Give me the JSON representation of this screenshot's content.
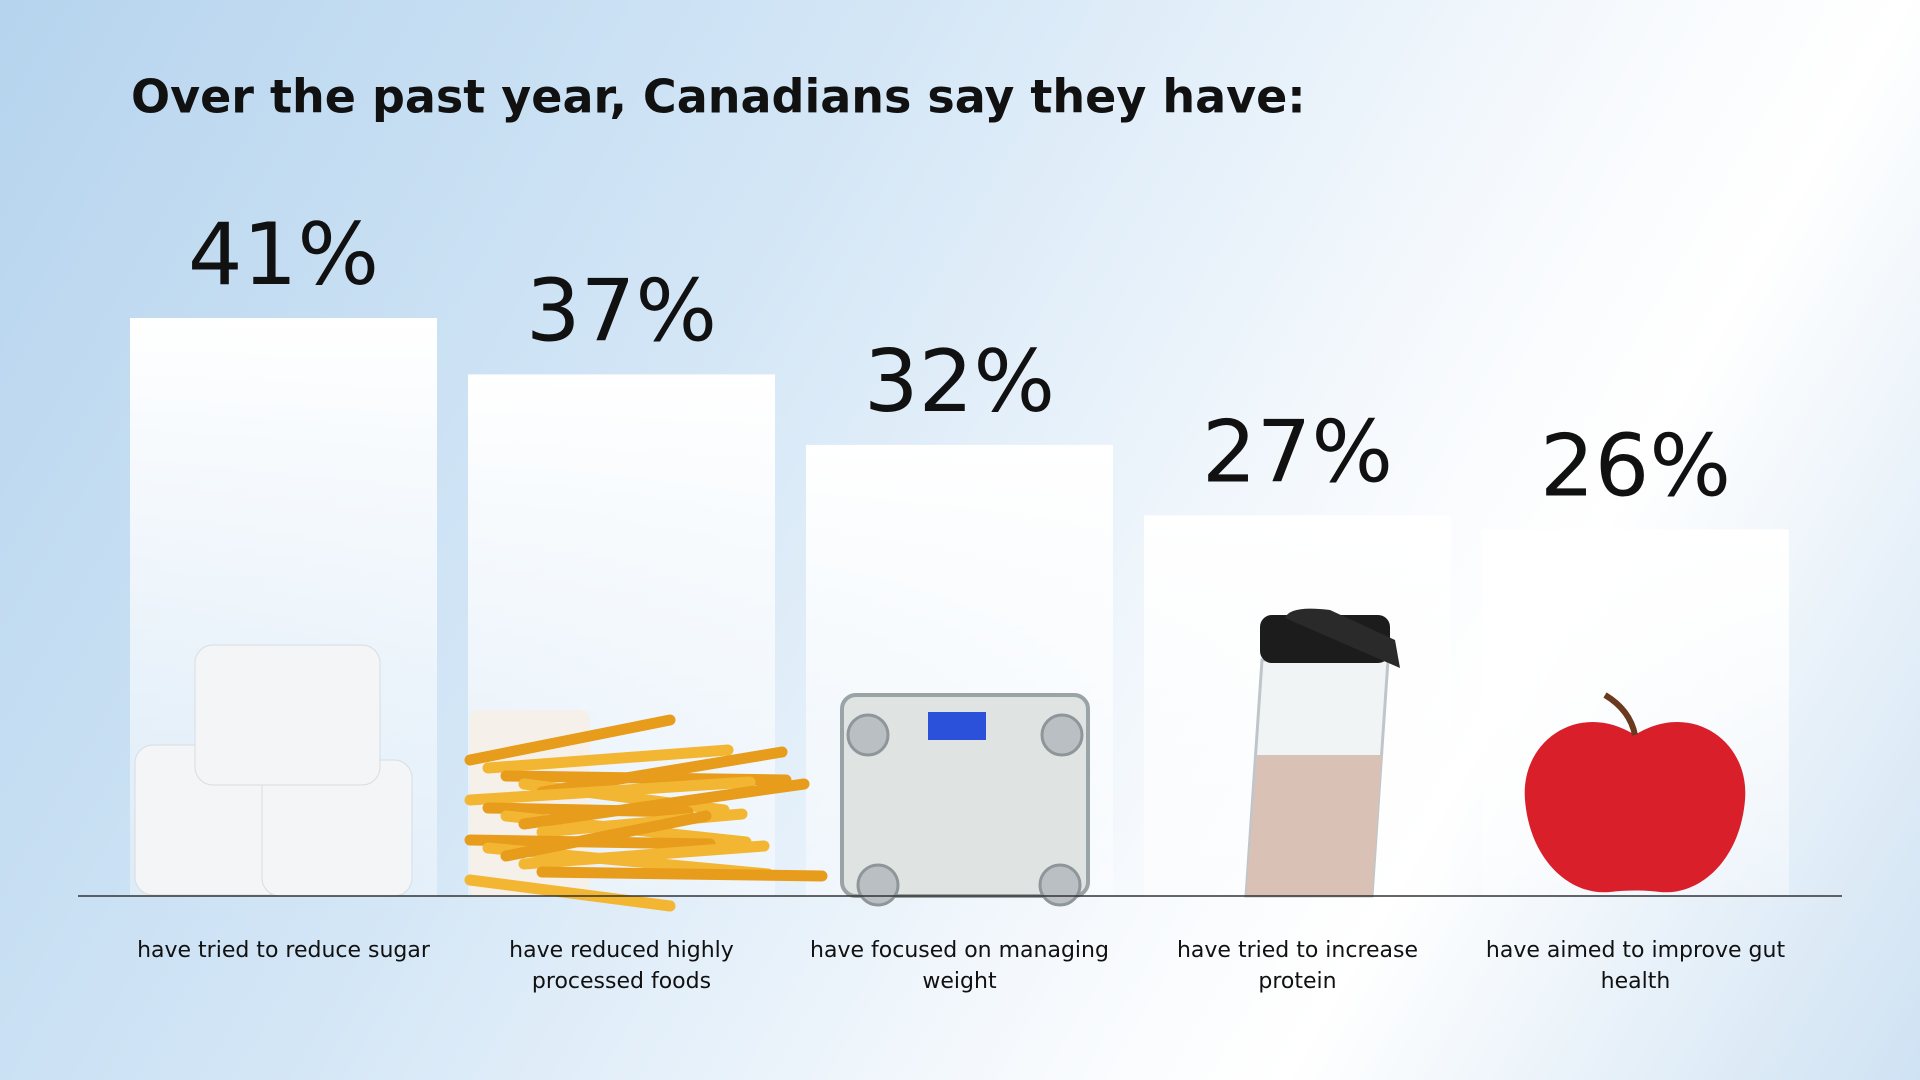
{
  "chart_data": {
    "type": "bar",
    "title": "Over the past year, Canadians say they have:",
    "categories": [
      "have tried to reduce sugar",
      "have reduced highly processed foods",
      "have focused on managing weight",
      "have tried to increase protein",
      "have aimed to improve gut health"
    ],
    "values": [
      41,
      37,
      32,
      27,
      26
    ],
    "value_labels": [
      "41%",
      "37%",
      "32%",
      "27%",
      "26%"
    ],
    "color": "#ffffff"
  }
}
